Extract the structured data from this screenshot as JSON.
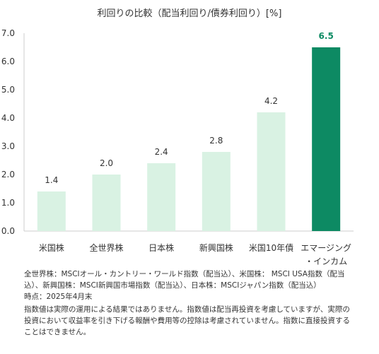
{
  "chart_data": {
    "type": "bar",
    "title": "利回りの比較（配当利回り/債券利回り）[%]",
    "categories": [
      "米国株",
      "全世界株",
      "日本株",
      "新興国株",
      "米国10年債",
      "エマージング・インカム"
    ],
    "category_lines": [
      [
        "米国株"
      ],
      [
        "全世界株"
      ],
      [
        "日本株"
      ],
      [
        "新興国株"
      ],
      [
        "米国10年債"
      ],
      [
        "エマージング",
        "・インカム"
      ]
    ],
    "values": [
      1.4,
      2.0,
      2.4,
      2.8,
      4.2,
      6.5
    ],
    "value_labels": [
      "1.4",
      "2.0",
      "2.4",
      "2.8",
      "4.2",
      "6.5"
    ],
    "highlight_index": 5,
    "ylim": [
      0,
      7.0
    ],
    "yticks": [
      0,
      1,
      2,
      3,
      4,
      5,
      6,
      7
    ],
    "ytick_labels": [
      "0.0",
      "1.0",
      "2.0",
      "3.0",
      "4.0",
      "5.0",
      "6.0",
      "7.0"
    ],
    "colors": {
      "bar": "#d9f2e3",
      "highlight": "#0d8a63",
      "axis": "#cccccc",
      "highlight_text": "#0d8a63"
    },
    "grid": false,
    "legend": "none"
  },
  "notes": {
    "line1": "全世界株：MSCIオール・カントリー・ワールド指数（配当込）、米国株： MSCI USA指数（配当込）、新興国株：MSCI新興国市場指数（配当込）、日本株：MSCIジャパン指数（配当込）",
    "line2": "時点：2025年4月末",
    "line3": "指数値は実際の運用による結果ではありません。指数値は配当再投資を考慮していますが、実際の投資において収益率を引き下げる報酬や費用等の控除は考慮されていません。指数に直接投資することはできません。"
  }
}
